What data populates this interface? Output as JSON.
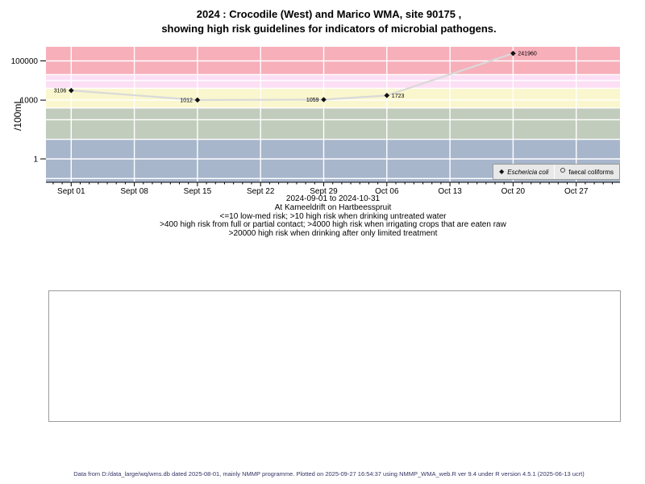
{
  "title": {
    "lines": [
      "2024 : Crocodile (West) and Marico WMA, site 90175 ,",
      "showing high risk guidelines for indicators of microbial pathogens."
    ]
  },
  "chart_data": {
    "type": "line",
    "title": "2024 : Crocodile (West) and Marico WMA, site 90175 , showing high risk guidelines for indicators of microbial pathogens.",
    "ylabel": "/100mL",
    "y_scale": "log",
    "ylim": [
      0.065,
      530000
    ],
    "y_ticks": [
      {
        "value": 1,
        "label": "1"
      },
      {
        "value": 1000,
        "label": "1000"
      },
      {
        "value": 100000,
        "label": "100000"
      }
    ],
    "x_range": {
      "start": "2024-09-01",
      "end": "2024-10-31"
    },
    "x_ticks": [
      {
        "date": "2024-09-01",
        "label": "Sept 01"
      },
      {
        "date": "2024-09-08",
        "label": "Sept 08"
      },
      {
        "date": "2024-09-15",
        "label": "Sept 15"
      },
      {
        "date": "2024-09-22",
        "label": "Sept 22"
      },
      {
        "date": "2024-09-29",
        "label": "Sept 29"
      },
      {
        "date": "2024-10-06",
        "label": "Oct 06"
      },
      {
        "date": "2024-10-13",
        "label": "Oct 13"
      },
      {
        "date": "2024-10-20",
        "label": "Oct 20"
      },
      {
        "date": "2024-10-27",
        "label": "Oct 27"
      }
    ],
    "grid_on": true,
    "gridline_color": "#ffffff",
    "decade_gridlines": [
      0.1,
      1,
      10,
      100,
      1000,
      10000,
      100000
    ],
    "threshold_gridlines": [
      400,
      4000,
      20000
    ],
    "risk_bands": [
      {
        "name": "high-risk-limited-treatment",
        "min": 20000,
        "max": null,
        "color": "#f7afba"
      },
      {
        "name": "high-risk-irrigation-raw-crops",
        "min": 4000,
        "max": 20000,
        "color": "#fcdff4"
      },
      {
        "name": "high-risk-full-partial-contact",
        "min": 400,
        "max": 4000,
        "color": "#faf6ce"
      },
      {
        "name": "high-risk-drinking-untreated",
        "min": 10,
        "max": 400,
        "color": "#c2ccbd"
      },
      {
        "name": "low-med-risk",
        "min": null,
        "max": 10,
        "color": "#a8b6cc"
      }
    ],
    "line_color": "#d9d9d9",
    "point_color": "#111111",
    "series": [
      {
        "name": "Eschericia coli",
        "marker": "filled-diamond",
        "points": [
          {
            "date": "2024-09-01",
            "value": 3106,
            "label": "3106",
            "label_side": "left"
          },
          {
            "date": "2024-09-15",
            "value": 1012,
            "label": "1012",
            "label_side": "left"
          },
          {
            "date": "2024-09-29",
            "value": 1059,
            "label": "1059",
            "label_side": "left"
          },
          {
            "date": "2024-10-06",
            "value": 1723,
            "label": "1723",
            "label_side": "right"
          },
          {
            "date": "2024-10-20",
            "value": 241960,
            "label": "241960",
            "label_side": "right"
          }
        ]
      },
      {
        "name": "faecal coliforms",
        "marker": "open-circle",
        "points": []
      }
    ],
    "legend_position": "bottom-right"
  },
  "legend": {
    "items": [
      {
        "label": "Eschericia coli",
        "marker": "filled-diamond",
        "italic": true
      },
      {
        "label": "faecal coliforms",
        "marker": "open-circle",
        "italic": false
      }
    ]
  },
  "subtitle": {
    "lines": [
      "2024-09-01 to 2024-10-31",
      "At Kameeldrift on Hartbeesspruit",
      "<=10 low-med risk; >10 high risk when drinking untreated water",
      ">400 high risk from full or partial contact; >4000 high risk when irrigating crops that are eaten raw",
      ">20000 high risk when drinking after only limited treatment"
    ]
  },
  "footer": {
    "text": "Data from D:/data_large/wq/wms.db dated 2025-08-01, mainly NMMP programme. Plotted on 2025-09-27 16:54:37 using NMMP_WMA_web.R ver 9.4 under R version 4.5.1 (2025-06-13 ucrt)",
    "color": "#333366"
  }
}
